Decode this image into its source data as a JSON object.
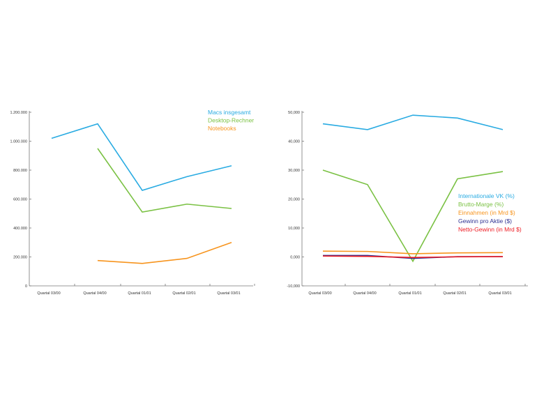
{
  "chart_data": [
    {
      "type": "line",
      "title": "",
      "xlabel": "",
      "ylabel": "",
      "categories": [
        "Quartal 03/00",
        "Quartal 04/00",
        "Quartal 01/01",
        "Quartal 02/01",
        "Quartal 03/01"
      ],
      "ylim": [
        0,
        1200000
      ],
      "yticks": [
        0,
        200000,
        400000,
        600000,
        800000,
        1000000,
        1200000
      ],
      "ytick_labels": [
        "0",
        "200.000",
        "400.000",
        "600.000",
        "800.000",
        "1.000.000",
        "1.200.000"
      ],
      "legend_position": "top-right",
      "series": [
        {
          "name": "Macs insgesamt",
          "color": "#29abe2",
          "values": [
            1020000,
            1120000,
            660000,
            755000,
            830000
          ]
        },
        {
          "name": "Desktop-Rechner",
          "color": "#7ac143",
          "values": [
            null,
            950000,
            510000,
            565000,
            535000
          ]
        },
        {
          "name": "Notebooks",
          "color": "#f7941d",
          "values": [
            null,
            175000,
            155000,
            190000,
            300000
          ]
        }
      ]
    },
    {
      "type": "line",
      "title": "",
      "xlabel": "",
      "ylabel": "",
      "categories": [
        "Quartal 03/00",
        "Quartal 04/00",
        "Quartal 01/01",
        "Quartal 02/01",
        "Quartal 03/01"
      ],
      "ylim": [
        -10,
        50
      ],
      "yticks": [
        -10,
        0,
        10,
        20,
        30,
        40,
        50
      ],
      "ytick_labels": [
        "-10,000",
        "0,000",
        "10,000",
        "20,000",
        "30,000",
        "40,000",
        "50,000"
      ],
      "legend_position": "center-right",
      "series": [
        {
          "name": "Internationale VK (%)",
          "color": "#29abe2",
          "values": [
            46,
            44,
            49,
            48,
            44
          ]
        },
        {
          "name": "Brutto-Marge (%)",
          "color": "#7ac143",
          "values": [
            30,
            25,
            -1.5,
            27,
            29.5
          ]
        },
        {
          "name": "Einnahmen (in Mrd $)",
          "color": "#f7941d",
          "values": [
            2.0,
            1.9,
            1.1,
            1.4,
            1.5
          ]
        },
        {
          "name": "Gewinn pro Aktie ($)",
          "color": "#2e3192",
          "values": [
            0.5,
            0.5,
            -0.5,
            0.1,
            0.1
          ]
        },
        {
          "name": "Netto-Gewinn (in Mrd $)",
          "color": "#ed1c24",
          "values": [
            0.3,
            0.2,
            -0.2,
            0.05,
            0.1
          ]
        }
      ]
    }
  ]
}
